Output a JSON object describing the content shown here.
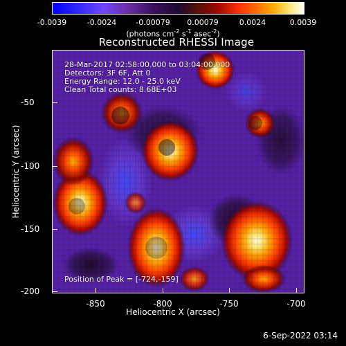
{
  "colorbar": {
    "ticks": [
      "-0.0039",
      "-0.0024",
      "-0.00079",
      "0.00079",
      "0.0024",
      "0.0039"
    ],
    "units_parts": {
      "prefix": "(photons cm",
      "sup1": "-2",
      "mid1": " s",
      "sup2": "-1",
      "mid2": " asec",
      "sup3": "-2",
      "suffix": ")"
    }
  },
  "image": {
    "title": "Reconstructed RHESSI Image",
    "x_label": "Heliocentric X (arcsec)",
    "y_label": "Heliocentric Y (arcsec)",
    "x_ticks": [
      "-850",
      "-800",
      "-750",
      "-700"
    ],
    "y_ticks": [
      "-50",
      "-100",
      "-150",
      "-200"
    ],
    "overlay": {
      "line1": "28-Mar-2017 02:58:00.000 to 03:04:00.000",
      "line2": "Detectors: 3F 6F, Att 0",
      "line3": "Energy Range: 12.0 - 25.0 keV",
      "line4": "Clean     Total counts: 8.68E+03",
      "peak": "Position of Peak = [-724,-159]"
    }
  },
  "footer": {
    "timestamp": "6-Sep-2022 03:14"
  }
}
